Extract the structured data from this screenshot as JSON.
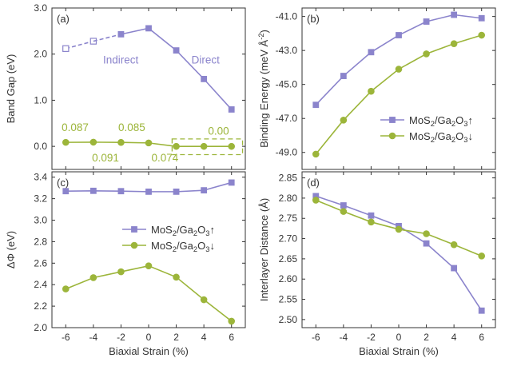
{
  "colors": {
    "purple": "#8b84cc",
    "green": "#9cb53a",
    "axis": "#333333"
  },
  "chart_data": [
    {
      "panel": "a",
      "type": "line",
      "panel_label": "(a)",
      "xlabel": "",
      "ylabel": "Band Gap (eV)",
      "xlim": [
        -7,
        7
      ],
      "ylim": [
        -0.5,
        3.0
      ],
      "xticks": [
        -6,
        -4,
        -2,
        0,
        2,
        4,
        6
      ],
      "xtick_labels": [
        "",
        "",
        "",
        "",
        "",
        "",
        ""
      ],
      "yticks": [
        0.0,
        1.0,
        2.0,
        3.0
      ],
      "ytick_labels": [
        "0.0",
        "1.0",
        "2.0",
        "3.0"
      ],
      "series": [
        {
          "color": "purple",
          "marker": "square",
          "x": [
            -6,
            -4
          ],
          "values": [
            2.12,
            2.28
          ],
          "dashed": true,
          "hollow": true
        },
        {
          "color": "purple",
          "marker": "square",
          "x": [
            -2,
            0,
            2,
            4,
            6
          ],
          "values": [
            2.43,
            2.56,
            2.08,
            1.46,
            0.8
          ]
        },
        {
          "color": "green",
          "marker": "circle",
          "x": [
            -6,
            -4,
            -2,
            0,
            2,
            4,
            6
          ],
          "values": [
            0.087,
            0.091,
            0.085,
            0.074,
            0.0,
            0.0,
            0.0
          ]
        }
      ],
      "annotations": [
        {
          "text": "Indirect",
          "x": -3.3,
          "y": 1.8,
          "color": "purple"
        },
        {
          "text": "Direct",
          "x": 3.1,
          "y": 1.8,
          "color": "purple"
        },
        {
          "text": "0.087",
          "x": -6.3,
          "y": 0.33,
          "color": "green"
        },
        {
          "text": "0.091",
          "x": -4.1,
          "y": -0.33,
          "color": "green"
        },
        {
          "text": "0.085",
          "x": -2.2,
          "y": 0.33,
          "color": "green"
        },
        {
          "text": "0.074",
          "x": 0.2,
          "y": -0.33,
          "color": "green"
        },
        {
          "text": "0.00",
          "x": 4.3,
          "y": 0.25,
          "color": "green"
        }
      ],
      "dashed_box": {
        "x": [
          1.7,
          6.8
        ],
        "y": [
          -0.18,
          0.16
        ]
      }
    },
    {
      "panel": "b",
      "type": "line",
      "panel_label": "(b)",
      "xlabel": "",
      "ylabel": "Binding Energy (meV Å⁻²)",
      "xlim": [
        -7,
        7
      ],
      "ylim": [
        -50.0,
        -40.5
      ],
      "xticks": [
        -6,
        -4,
        -2,
        0,
        2,
        4,
        6
      ],
      "xtick_labels": [
        "",
        "",
        "",
        "",
        "",
        "",
        ""
      ],
      "yticks": [
        -49.0,
        -47.0,
        -45.0,
        -43.0,
        -41.0
      ],
      "ytick_labels": [
        "-49.0",
        "-47.0",
        "-45.0",
        "-43.0",
        "-41.0"
      ],
      "legend": "middle-right",
      "series": [
        {
          "name": "MoS₂/Ga₂O₃↑",
          "color": "purple",
          "marker": "square",
          "x": [
            -6,
            -4,
            -2,
            0,
            2,
            4,
            6
          ],
          "values": [
            -46.2,
            -44.5,
            -43.1,
            -42.1,
            -41.3,
            -40.9,
            -41.1
          ]
        },
        {
          "name": "MoS₂/Ga₂O₃↓",
          "color": "green",
          "marker": "circle",
          "x": [
            -6,
            -4,
            -2,
            0,
            2,
            4,
            6
          ],
          "values": [
            -49.1,
            -47.1,
            -45.4,
            -44.1,
            -43.2,
            -42.6,
            -42.1
          ]
        }
      ]
    },
    {
      "panel": "c",
      "type": "line",
      "panel_label": "(c)",
      "xlabel": "Biaxial Strain (%)",
      "ylabel": "ΔΦ (eV)",
      "xlim": [
        -7,
        7
      ],
      "ylim": [
        2.0,
        3.45
      ],
      "xticks": [
        -6,
        -4,
        -2,
        0,
        2,
        4,
        6
      ],
      "xtick_labels": [
        "-6",
        "-4",
        "-2",
        "0",
        "2",
        "4",
        "6"
      ],
      "yticks": [
        2.0,
        2.2,
        2.4,
        2.6,
        2.8,
        3.0,
        3.2,
        3.4
      ],
      "ytick_labels": [
        "2.0",
        "2.2",
        "2.4",
        "2.6",
        "2.8",
        "3.0",
        "3.2",
        "3.4"
      ],
      "legend": "middle-right",
      "series": [
        {
          "name": "MoS₂/Ga₂O₃↑",
          "color": "purple",
          "marker": "square",
          "x": [
            -6,
            -4,
            -2,
            0,
            2,
            4,
            6
          ],
          "values": [
            3.27,
            3.273,
            3.27,
            3.265,
            3.265,
            3.278,
            3.35
          ]
        },
        {
          "name": "MoS₂/Ga₂O₃↓",
          "color": "green",
          "marker": "circle",
          "x": [
            -6,
            -4,
            -2,
            0,
            2,
            4,
            6
          ],
          "values": [
            2.36,
            2.465,
            2.52,
            2.575,
            2.47,
            2.26,
            2.06
          ]
        }
      ]
    },
    {
      "panel": "d",
      "type": "line",
      "panel_label": "(d)",
      "xlabel": "Biaxial Strain (%)",
      "ylabel": "Interlayer Distance (Å)",
      "xlim": [
        -7,
        7
      ],
      "ylim": [
        2.48,
        2.865
      ],
      "xticks": [
        -6,
        -4,
        -2,
        0,
        2,
        4,
        6
      ],
      "xtick_labels": [
        "-6",
        "-4",
        "-2",
        "0",
        "2",
        "4",
        "6"
      ],
      "yticks": [
        2.5,
        2.55,
        2.6,
        2.65,
        2.7,
        2.75,
        2.8,
        2.85
      ],
      "ytick_labels": [
        "2.50",
        "2.55",
        "2.60",
        "2.65",
        "2.70",
        "2.75",
        "2.80",
        "2.85"
      ],
      "series": [
        {
          "color": "purple",
          "marker": "square",
          "x": [
            -6,
            -4,
            -2,
            0,
            2,
            4,
            6
          ],
          "values": [
            2.805,
            2.782,
            2.757,
            2.731,
            2.688,
            2.627,
            2.522
          ]
        },
        {
          "color": "green",
          "marker": "circle",
          "x": [
            -6,
            -4,
            -2,
            0,
            2,
            4,
            6
          ],
          "values": [
            2.795,
            2.767,
            2.741,
            2.723,
            2.712,
            2.685,
            2.657
          ]
        }
      ]
    }
  ]
}
